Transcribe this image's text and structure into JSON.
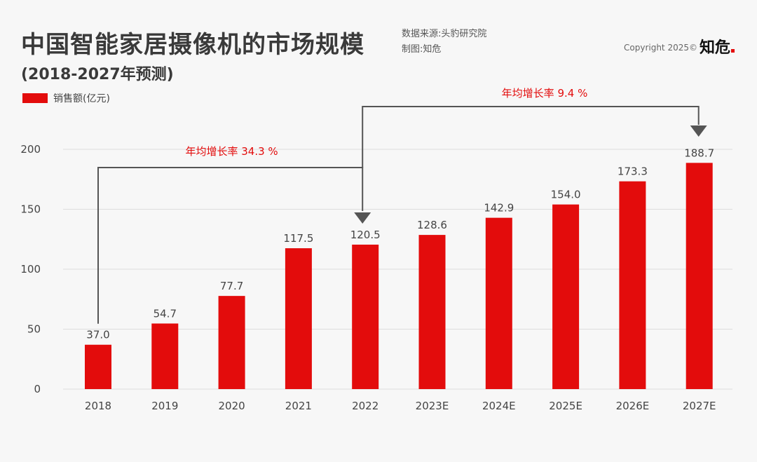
{
  "header": {
    "title": "中国智能家居摄像机的市场规模",
    "subtitle": "(2018-2027年预测)",
    "source_line": "数据来源:头豹研究院",
    "author_line": "制图:知危",
    "copyright": "Copyright 2025©",
    "brand": "知危"
  },
  "colors": {
    "bar": "#e30c0c",
    "annotation_text": "#e30c0c",
    "connector": "#555555",
    "grid": "#dddddd"
  },
  "chart_data": {
    "type": "bar",
    "title": "中国智能家居摄像机的市场规模",
    "categories": [
      "2018",
      "2019",
      "2020",
      "2021",
      "2022",
      "2023E",
      "2024E",
      "2025E",
      "2026E",
      "2027E"
    ],
    "series": [
      {
        "name": "销售额(亿元)",
        "values": [
          37.0,
          54.7,
          77.7,
          117.5,
          120.5,
          128.6,
          142.9,
          154.0,
          173.3,
          188.7
        ],
        "labels": [
          "37.0",
          "54.7",
          "77.7",
          "117.5",
          "120.5",
          "128.6",
          "142.9",
          "154.0",
          "173.3",
          "188.7"
        ]
      }
    ],
    "ylim": [
      0,
      200
    ],
    "yticks": [
      0,
      50,
      100,
      150,
      200
    ],
    "ytick_labels": [
      "0",
      "50",
      "100",
      "150",
      "200"
    ],
    "grid": true,
    "legend_position": "top-left",
    "annotations": [
      {
        "text": "年均增长率  34.3 %",
        "from_category": "2018",
        "to_category": "2022"
      },
      {
        "text": "年均增长率  9.4 %",
        "from_category": "2022",
        "to_category": "2027E"
      }
    ]
  }
}
